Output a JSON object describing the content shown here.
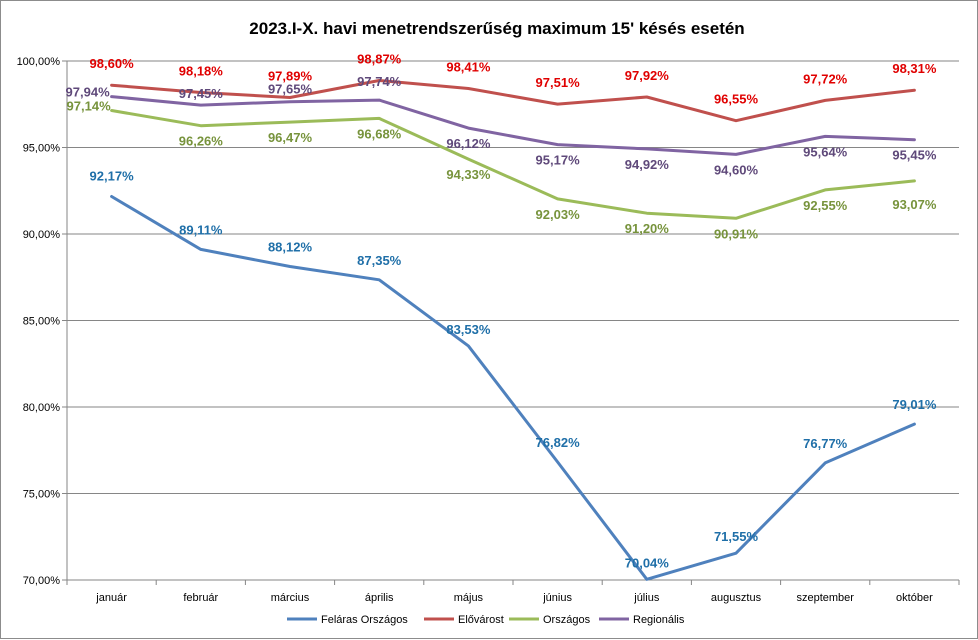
{
  "chart_data": {
    "type": "line",
    "title": "2023.I-X. havi menetrendszerűség  maximum 15' késés esetén",
    "categories": [
      "január",
      "február",
      "március",
      "április",
      "május",
      "június",
      "július",
      "augusztus",
      "szeptember",
      "október"
    ],
    "ylim": [
      70,
      100
    ],
    "yticks": [
      70,
      75,
      80,
      85,
      90,
      95,
      100
    ],
    "ytick_labels": [
      "70,00%",
      "75,00%",
      "80,00%",
      "85,00%",
      "90,00%",
      "95,00%",
      "100,00%"
    ],
    "grid": true,
    "legend_position": "bottom",
    "series": [
      {
        "name": "Feláras Országos",
        "color": "#4F81BD",
        "label_color": "#1F6FA8",
        "values": [
          92.17,
          89.11,
          88.12,
          87.35,
          83.53,
          76.82,
          70.04,
          71.55,
          76.77,
          79.01
        ],
        "labels": [
          "92,17%",
          "89,11%",
          "88,12%",
          "87,35%",
          "83,53%",
          "76,82%",
          "70,04%",
          "71,55%",
          "76,77%",
          "79,01%"
        ]
      },
      {
        "name": "Elővárost",
        "color": "#C0504D",
        "label_color": "#E00000",
        "values": [
          98.6,
          98.18,
          97.89,
          98.87,
          98.41,
          97.51,
          97.92,
          96.55,
          97.72,
          98.31
        ],
        "labels": [
          "98,60%",
          "98,18%",
          "97,89%",
          "98,87%",
          "98,41%",
          "97,51%",
          "97,92%",
          "96,55%",
          "97,72%",
          "98,31%"
        ]
      },
      {
        "name": "Országos",
        "color": "#9BBB59",
        "label_color": "#77933C",
        "values": [
          97.14,
          96.26,
          96.47,
          96.68,
          94.33,
          92.03,
          91.2,
          90.91,
          92.55,
          93.07
        ],
        "labels": [
          "97,14%",
          "96,26%",
          "96,47%",
          "96,68%",
          "94,33%",
          "92,03%",
          "91,20%",
          "90,91%",
          "92,55%",
          "93,07%"
        ]
      },
      {
        "name": "Regionális",
        "color": "#8064A2",
        "label_color": "#5F497A",
        "values": [
          97.94,
          97.45,
          97.65,
          97.74,
          96.12,
          95.17,
          94.92,
          94.6,
          95.64,
          95.45
        ],
        "labels": [
          "97,94%",
          "97,45%",
          "97,65%",
          "97,74%",
          "96,12%",
          "95,17%",
          "94,92%",
          "94,60%",
          "95,64%",
          "95,45%"
        ]
      }
    ]
  }
}
